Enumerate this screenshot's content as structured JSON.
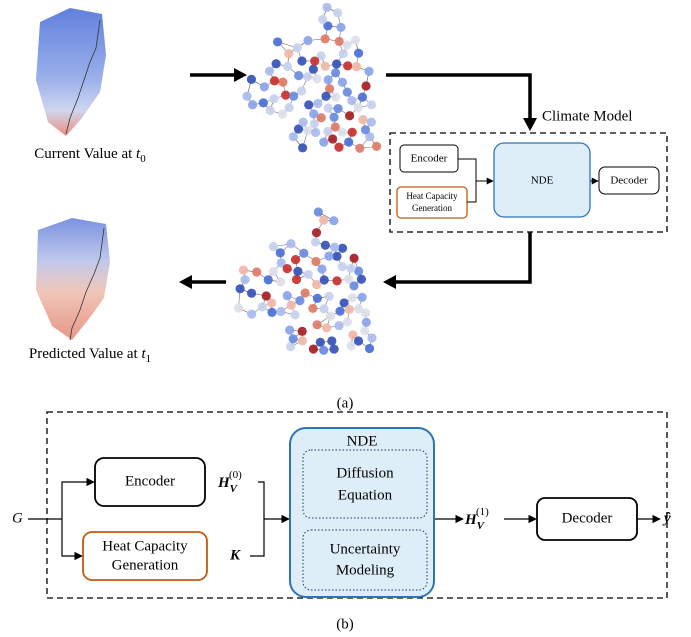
{
  "panel_a": {
    "current_caption": {
      "text": "Current Value at",
      "var": "t",
      "sub": "0"
    },
    "predicted_caption": {
      "text": "Predicted Value at",
      "var": "t",
      "sub": "1"
    },
    "model_title": "Climate Model",
    "encoder": "Encoder",
    "heat_capacity": [
      "Heat Capacity",
      "Generation"
    ],
    "nde": "NDE",
    "decoder": "Decoder",
    "label": "(a)"
  },
  "panel_b": {
    "input": "G",
    "encoder": "Encoder",
    "h0": {
      "base": "H",
      "sub": "V",
      "sup": "(0)"
    },
    "heat_capacity": [
      "Heat Capacity",
      "Generation"
    ],
    "k": "K",
    "nde": "NDE",
    "diffusion": [
      "Diffusion",
      "Equation"
    ],
    "uncertainty": [
      "Uncertainty",
      "Modeling"
    ],
    "h1": {
      "base": "H",
      "sub": "V",
      "sup": "(1)"
    },
    "decoder": "Decoder",
    "output": "ŷ",
    "label": "(b)"
  }
}
